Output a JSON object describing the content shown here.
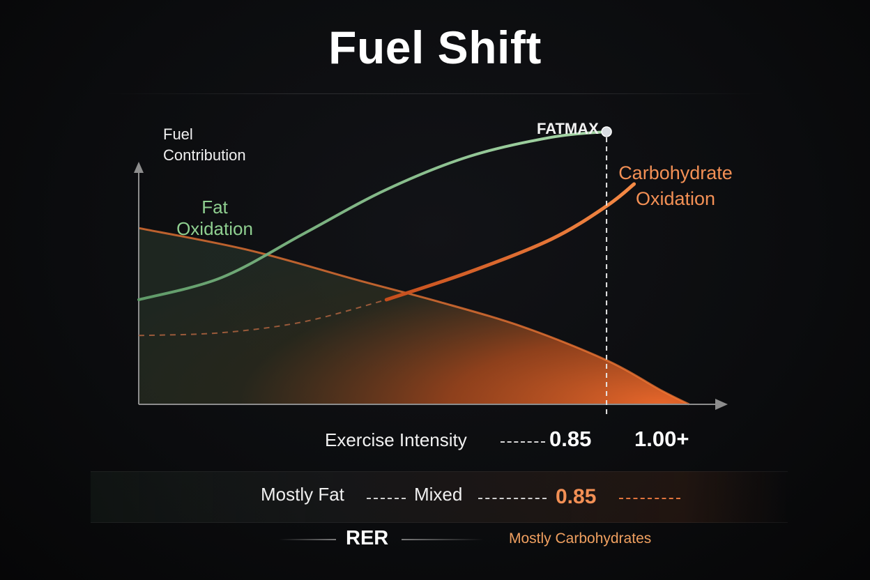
{
  "title": "Fuel Shift",
  "chart_data": {
    "type": "line",
    "ylabel": "Fuel Contribution",
    "xlabel": "Exercise Intensity",
    "x_ticks": [
      "0.85",
      "1.00+"
    ],
    "xlim": [
      0.0,
      1.05
    ],
    "ylim": [
      0,
      100
    ],
    "grid": false,
    "fatmax": {
      "label": "FATMAX",
      "x": 0.85
    },
    "series": [
      {
        "name": "Fat Oxidation",
        "color": "#7fb885",
        "x": [
          0.0,
          0.15,
          0.3,
          0.45,
          0.6,
          0.75,
          0.85
        ],
        "values": [
          38,
          46,
          62,
          78,
          90,
          97,
          99
        ]
      },
      {
        "name": "Carbohydrate Oxidation",
        "color": "#f26b2c",
        "x": [
          0.0,
          0.15,
          0.3,
          0.45,
          0.6,
          0.75,
          0.85,
          0.9
        ],
        "values": [
          25,
          26,
          30,
          38,
          48,
          60,
          72,
          80
        ]
      }
    ],
    "area_series": {
      "color": "#f47a35",
      "x": [
        0.0,
        0.2,
        0.4,
        0.55,
        0.7,
        0.85,
        0.95,
        1.0
      ],
      "values": [
        64,
        56,
        45,
        37,
        28,
        16,
        5,
        0
      ]
    }
  },
  "rer_scale": {
    "title": "RER",
    "items": [
      "Mostly Fat",
      "Mixed"
    ],
    "value": "0.85",
    "carb_label": "Mostly Carbohydrates"
  },
  "colors": {
    "fat": "#8fcf90",
    "carb": "#f39055",
    "background": "#0b0c0e"
  }
}
